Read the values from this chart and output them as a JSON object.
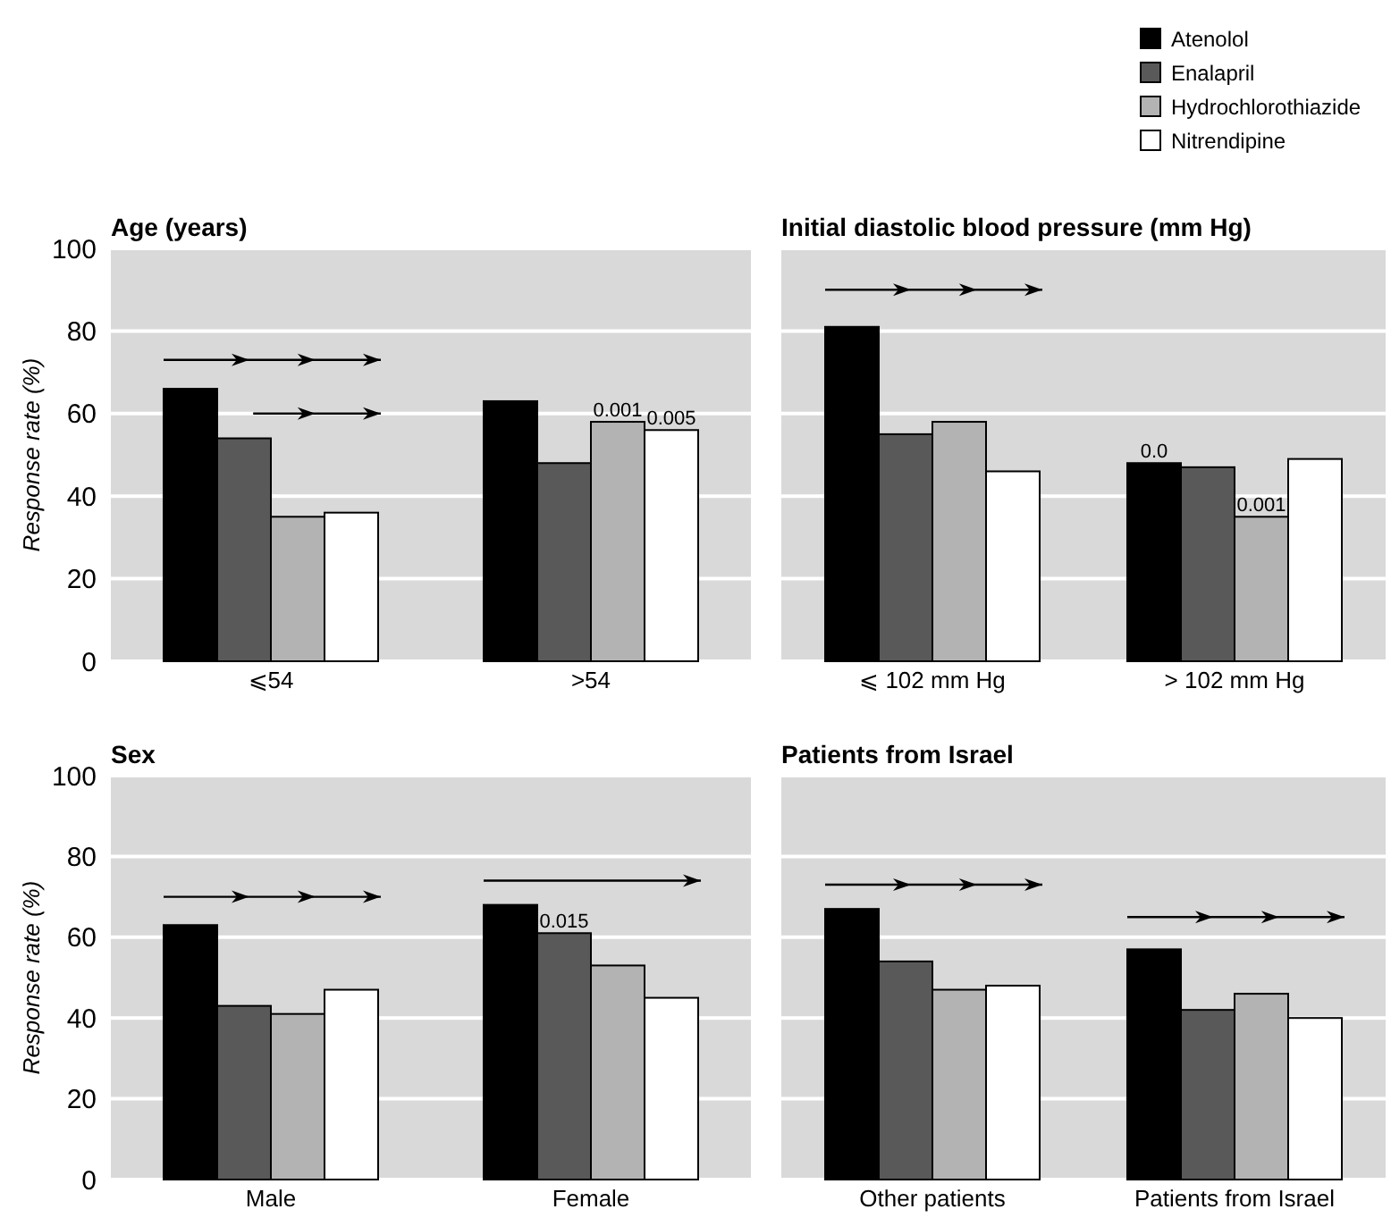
{
  "chart_data": [
    {
      "type": "bar",
      "title": "Age (years)",
      "ylabel": "Response rate (%)",
      "categories": [
        "⩽54",
        ">54"
      ],
      "ylim": [
        0,
        100
      ],
      "yticks": [
        0,
        20,
        40,
        60,
        80,
        100
      ],
      "grid": "y",
      "legend": "top right",
      "series": [
        {
          "name": "Atenolol",
          "color": "#000000",
          "values": [
            66,
            63
          ]
        },
        {
          "name": "Enalapril",
          "color": "#595959",
          "values": [
            54,
            48
          ]
        },
        {
          "name": "Hydrochlorothiazide",
          "color": "#b3b3b3",
          "values": [
            35,
            58
          ]
        },
        {
          "name": "Nitrendipine",
          "color": "#ffffff",
          "values": [
            36,
            56
          ]
        }
      ],
      "annotations": [
        {
          "text": "0.001",
          "x": ">54",
          "y": 58
        },
        {
          "text": "0.005",
          "x": ">54",
          "y": 56
        }
      ]
    },
    {
      "type": "bar",
      "title": "Initial diastolic blood pressure (mm Hg)",
      "categories": [
        "⩽ 102 mm Hg",
        "> 102 mm Hg"
      ],
      "ylim": [
        0,
        100
      ],
      "yticks": [
        0,
        20,
        40,
        60,
        80,
        100
      ],
      "grid": "y",
      "tick_labels": "x",
      "series": [
        {
          "color": "#000000",
          "values": [
            81,
            48
          ]
        },
        {
          "color": "#595959",
          "values": [
            55,
            47
          ]
        },
        {
          "color": "#b3b3b3",
          "values": [
            58,
            35
          ]
        },
        {
          "color": "#ffffff",
          "values": [
            46,
            49
          ]
        }
      ],
      "annotations": [
        "0.0",
        {
          "text": "0.001",
          "x": "> 102 mm Hg",
          "y": 35
        }
      ]
    },
    {
      "type": "bar",
      "title": "Sex",
      "ylabel": "Response rate (%)",
      "categories": [
        "Male",
        "Female"
      ],
      "ylim": [
        0,
        100
      ],
      "yticks": [
        0,
        20,
        40,
        60,
        80,
        100
      ],
      "grid": "y",
      "series": [
        {
          "color": "#000000",
          "values": [
            63,
            68
          ]
        },
        {
          "color": "#595959",
          "values": [
            43,
            61
          ]
        },
        {
          "color": "#b3b3b3",
          "values": [
            41,
            53
          ]
        },
        {
          "color": "#ffffff",
          "values": [
            47,
            45
          ]
        }
      ],
      "annotations": [
        {
          "text": "0.015",
          "x": "Female",
          "y": 61
        }
      ]
    },
    {
      "type": "bar",
      "title": "Patients from Israel",
      "categories": [
        "Other patients",
        "Patients from Israel"
      ],
      "ylim": [
        0,
        100
      ],
      "yticks": [
        0,
        20,
        40,
        60,
        80,
        100
      ],
      "grid": "y",
      "tick_labels": "x",
      "series": [
        {
          "color": "#000000",
          "values": [
            67,
            57
          ]
        },
        {
          "color": "#595959",
          "values": [
            54,
            42
          ]
        },
        {
          "color": "#b3b3b3",
          "values": [
            47,
            46
          ]
        },
        {
          "color": "#ffffff",
          "values": [
            48,
            40
          ]
        }
      ]
    }
  ]
}
